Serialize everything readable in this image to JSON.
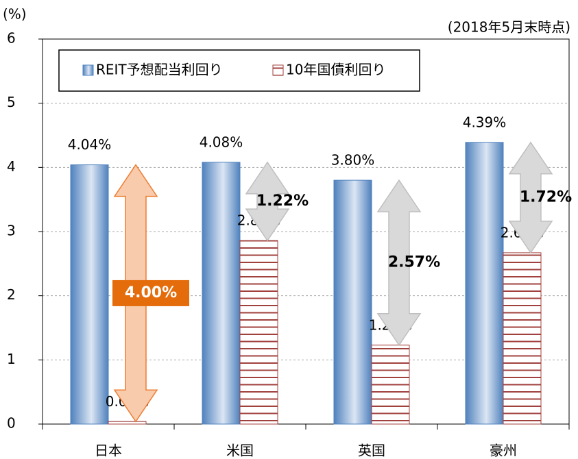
{
  "chart_data": {
    "type": "bar",
    "y_label": "(%)",
    "subtitle": "(2018年5月末時点)",
    "categories": [
      "日本",
      "米国",
      "英国",
      "豪州"
    ],
    "series": [
      {
        "name": "REIT予想配当利回り",
        "color": "#4f81bd",
        "values": [
          4.04,
          4.08,
          3.8,
          4.39
        ],
        "value_labels": [
          "4.04%",
          "4.08%",
          "3.80%",
          "4.39%"
        ]
      },
      {
        "name": "10年国債利回り",
        "color": "#a0413e",
        "values": [
          0.04,
          2.86,
          1.23,
          2.67
        ],
        "value_labels": [
          "0.04%",
          "2.86%",
          "1.23%",
          "2.67%"
        ]
      }
    ],
    "spreads": {
      "values": [
        4.0,
        1.22,
        2.57,
        1.72
      ],
      "value_labels": [
        "4.00%",
        "1.22%",
        "2.57%",
        "1.72%"
      ],
      "colors": [
        "#f8cbad",
        "#d9d9d9",
        "#d9d9d9",
        "#d9d9d9"
      ],
      "label_fills": [
        "#e46c0a",
        null,
        null,
        null
      ]
    },
    "ylim": [
      0,
      6
    ],
    "yticks": [
      0,
      1,
      2,
      3,
      4,
      5,
      6
    ],
    "grid": true
  }
}
